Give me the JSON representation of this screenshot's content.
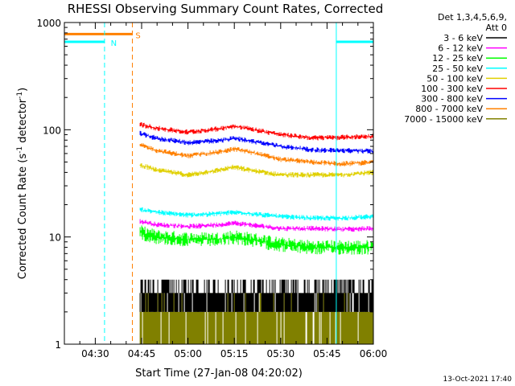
{
  "chart_data": {
    "type": "line",
    "title": "RHESSI Observing Summary Count Rates, Corrected",
    "xlabel": "Start Time (27-Jan-08 04:20:02)",
    "ylabel_main": "Corrected Count Rate (s",
    "ylabel_sup1": "-1",
    "ylabel_mid": " detector",
    "ylabel_sup2": "-1",
    "ylabel_end": ")",
    "yscale": "log",
    "ylim": [
      1,
      1000
    ],
    "xlim_minutes": [
      0,
      100
    ],
    "x_ticks": [
      {
        "label": "04:30",
        "minute": 10
      },
      {
        "label": "04:45",
        "minute": 25
      },
      {
        "label": "05:00",
        "minute": 40
      },
      {
        "label": "05:15",
        "minute": 55
      },
      {
        "label": "05:30",
        "minute": 70
      },
      {
        "label": "05:45",
        "minute": 85
      },
      {
        "label": "06:00",
        "minute": 100
      }
    ],
    "y_ticks": [
      {
        "label": "1",
        "value": 1
      },
      {
        "label": "10",
        "value": 10
      },
      {
        "label": "100",
        "value": 100
      },
      {
        "label": "1000",
        "value": 1000
      }
    ],
    "legend": {
      "header1": "Det 1,3,4,5,6,9,",
      "header2": "Att 0",
      "placement": "right",
      "entries": [
        {
          "label": "3 - 6 keV",
          "color": "#000000"
        },
        {
          "label": "6 - 12 keV",
          "color": "#ff00ff"
        },
        {
          "label": "12 - 25 keV",
          "color": "#00ff00"
        },
        {
          "label": "25 - 50 keV",
          "color": "#00ffff"
        },
        {
          "label": "50 - 100 keV",
          "color": "#e0d000"
        },
        {
          "label": "100 - 300 keV",
          "color": "#ff0000"
        },
        {
          "label": "300 - 800 keV",
          "color": "#0000ff"
        },
        {
          "label": "800 - 7000 keV",
          "color": "#ff8000"
        },
        {
          "label": "7000 - 15000 keV",
          "color": "#808000"
        }
      ]
    },
    "data_start_minute": 24.5,
    "data_end_minute": 100,
    "series": [
      {
        "name": "100 - 300 keV",
        "color": "#ff0000",
        "x": [
          24.5,
          30,
          40,
          50,
          55,
          60,
          70,
          80,
          90,
          100
        ],
        "y": [
          112,
          103,
          95,
          102,
          108,
          102,
          90,
          84,
          85,
          87
        ]
      },
      {
        "name": "300 - 800 keV",
        "color": "#0000ff",
        "x": [
          24.5,
          30,
          40,
          50,
          55,
          60,
          70,
          80,
          90,
          100
        ],
        "y": [
          92,
          83,
          76,
          79,
          83,
          79,
          70,
          65,
          64,
          63
        ]
      },
      {
        "name": "800 - 7000 keV",
        "color": "#ff8000",
        "x": [
          24.5,
          30,
          40,
          50,
          55,
          60,
          70,
          80,
          90,
          100
        ],
        "y": [
          72,
          64,
          57,
          62,
          66,
          62,
          53,
          50,
          48,
          50
        ]
      },
      {
        "name": "50 - 100 keV",
        "color": "#e0d000",
        "x": [
          24.5,
          30,
          40,
          50,
          55,
          60,
          70,
          80,
          90,
          100
        ],
        "y": [
          47,
          42,
          38,
          42,
          45,
          42,
          38,
          38,
          38,
          40
        ]
      },
      {
        "name": "25 - 50 keV",
        "color": "#00ffff",
        "x": [
          24.5,
          30,
          40,
          50,
          55,
          60,
          70,
          80,
          90,
          100
        ],
        "y": [
          18,
          17,
          16,
          16.5,
          17,
          16.5,
          15.5,
          15,
          15,
          15.5
        ]
      },
      {
        "name": "6 - 12 keV",
        "color": "#ff00ff",
        "x": [
          24.5,
          30,
          40,
          50,
          55,
          60,
          70,
          80,
          90,
          100
        ],
        "y": [
          14,
          13,
          12.5,
          13,
          13.5,
          13,
          12,
          12,
          11.8,
          12
        ]
      },
      {
        "name": "12 - 25 keV",
        "color": "#00ff00",
        "x": [
          24.5,
          30,
          40,
          50,
          55,
          60,
          70,
          80,
          90,
          100
        ],
        "y": [
          11,
          10,
          9.5,
          9.5,
          10,
          9.5,
          8.5,
          8,
          8,
          8
        ]
      },
      {
        "name": "3 - 6 keV",
        "color": "#000000",
        "x": [
          24.5,
          60,
          100
        ],
        "y": [
          3,
          3,
          3
        ]
      },
      {
        "name": "7000 - 15000 keV",
        "color": "#808000",
        "x": [
          24.5,
          60,
          100
        ],
        "y": [
          2,
          2,
          2
        ]
      }
    ],
    "annotations": [
      {
        "type": "level",
        "color": "#ff8000",
        "x": [
          0,
          22
        ],
        "y": 780
      },
      {
        "type": "level",
        "color": "#00ffff",
        "x": [
          0,
          13
        ],
        "y": 660
      },
      {
        "type": "level",
        "color": "#00ffff",
        "x": [
          88,
          100
        ],
        "y": 660
      },
      {
        "type": "vline",
        "color": "#00ffff",
        "style": "dashed",
        "x": 13
      },
      {
        "type": "vline",
        "color": "#ff8000",
        "style": "dashed",
        "x": 22
      },
      {
        "type": "vline",
        "color": "#00ffff",
        "style": "solid",
        "x": 88
      },
      {
        "type": "vline",
        "color": "#00ffff",
        "style": "dashed",
        "x": 100
      },
      {
        "type": "vline",
        "color": "#00ffff",
        "style": "solid",
        "x": 0
      },
      {
        "type": "label",
        "text": "N",
        "color": "#00ffff",
        "x": 15,
        "y": 660
      },
      {
        "type": "label",
        "text": "S",
        "color": "#ff8000",
        "x": 23,
        "y": 780
      }
    ],
    "footer_timestamp": "13-Oct-2021 17:40"
  }
}
